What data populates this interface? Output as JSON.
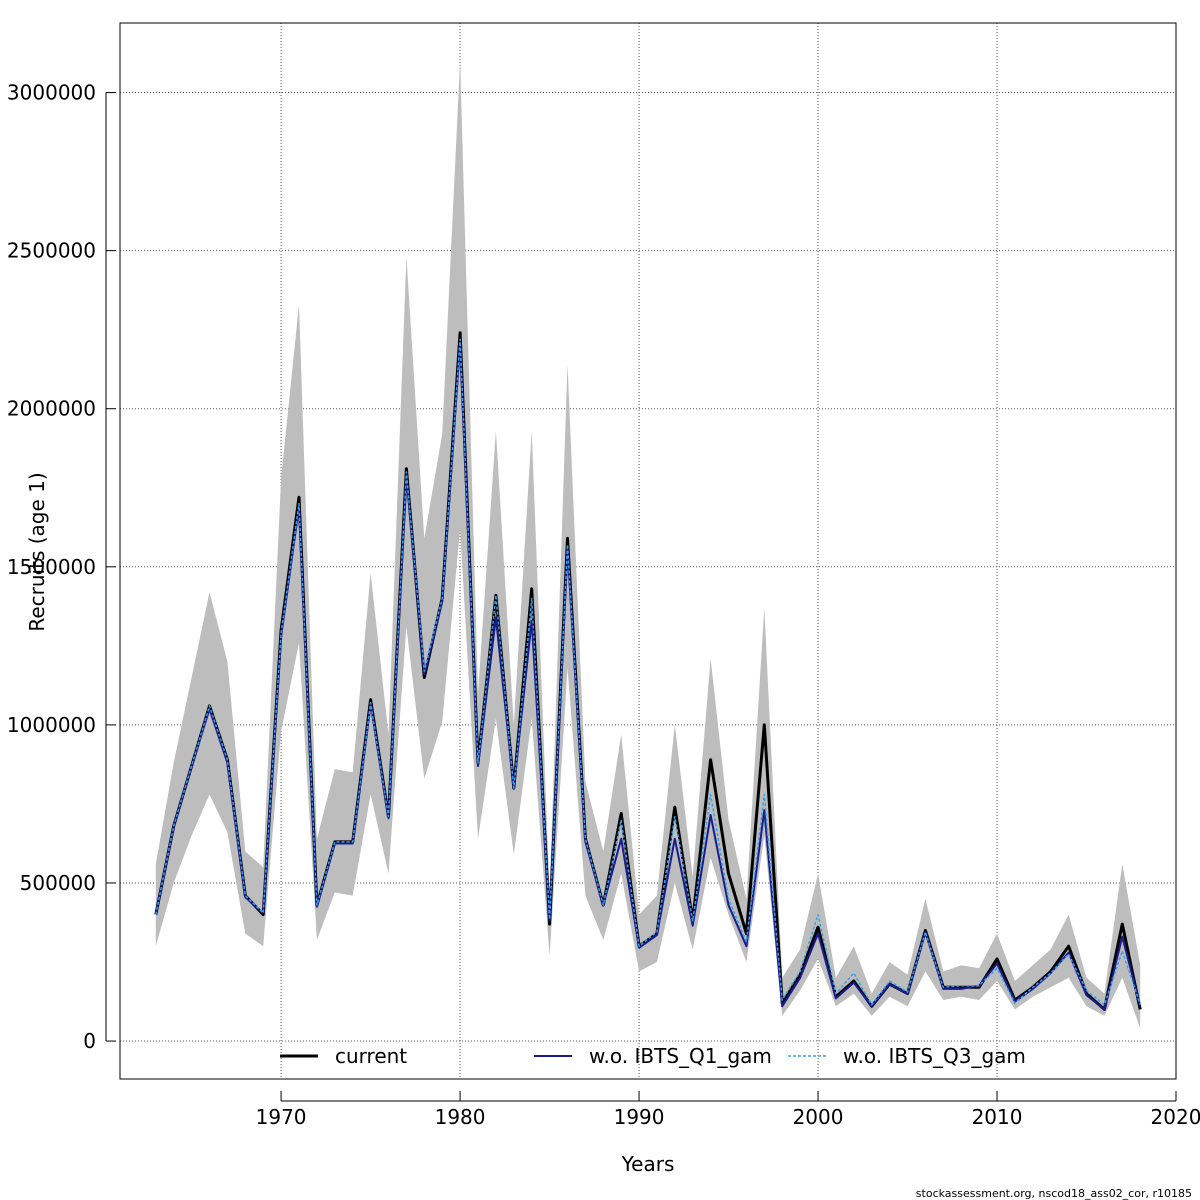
{
  "chart_data": {
    "type": "line",
    "xlabel": "Years",
    "ylabel": "Recruits (age 1)",
    "xlim": [
      1961,
      2020
    ],
    "ylim": [
      -120000,
      3220000
    ],
    "grid": true,
    "legend_position": "bottom",
    "x_ticks": [
      1970,
      1980,
      1990,
      2000,
      2010,
      2020
    ],
    "x_tick_labels": [
      "1970",
      "1980",
      "1990",
      "2000",
      "2010",
      "2020"
    ],
    "y_ticks": [
      0,
      500000,
      1000000,
      1500000,
      2000000,
      2500000,
      3000000
    ],
    "y_tick_labels": [
      "0",
      "500000",
      "1000000",
      "1500000",
      "2000000",
      "2500000",
      "3000000"
    ],
    "years": [
      1963,
      1964,
      1965,
      1966,
      1967,
      1968,
      1969,
      1970,
      1971,
      1972,
      1973,
      1974,
      1975,
      1976,
      1977,
      1978,
      1979,
      1980,
      1981,
      1982,
      1983,
      1984,
      1985,
      1986,
      1987,
      1988,
      1989,
      1990,
      1991,
      1992,
      1993,
      1994,
      1995,
      1996,
      1997,
      1998,
      1999,
      2000,
      2001,
      2002,
      2003,
      2004,
      2005,
      2006,
      2007,
      2008,
      2009,
      2010,
      2011,
      2012,
      2013,
      2014,
      2015,
      2016,
      2017,
      2018
    ],
    "ci_upper": [
      560000,
      880000,
      1150000,
      1420000,
      1200000,
      600000,
      550000,
      1780000,
      2330000,
      640000,
      860000,
      850000,
      1480000,
      970000,
      2480000,
      1590000,
      1920000,
      3100000,
      1100000,
      1930000,
      1000000,
      1930000,
      470000,
      2140000,
      820000,
      600000,
      970000,
      400000,
      460000,
      1000000,
      520000,
      1210000,
      700000,
      450000,
      1370000,
      200000,
      290000,
      530000,
      200000,
      300000,
      150000,
      250000,
      210000,
      450000,
      220000,
      240000,
      230000,
      340000,
      190000,
      240000,
      290000,
      400000,
      200000,
      150000,
      560000,
      240000
    ],
    "ci_lower": [
      300000,
      500000,
      650000,
      780000,
      660000,
      340000,
      300000,
      980000,
      1260000,
      320000,
      470000,
      460000,
      780000,
      530000,
      1310000,
      830000,
      1010000,
      1620000,
      640000,
      1020000,
      590000,
      1020000,
      270000,
      1180000,
      460000,
      320000,
      530000,
      220000,
      250000,
      500000,
      290000,
      580000,
      400000,
      250000,
      650000,
      80000,
      160000,
      260000,
      110000,
      150000,
      80000,
      140000,
      110000,
      220000,
      130000,
      140000,
      130000,
      190000,
      100000,
      140000,
      170000,
      200000,
      110000,
      80000,
      200000,
      40000
    ],
    "series": [
      {
        "name": "current",
        "color": "#000000",
        "values": [
          400000,
          680000,
          870000,
          1060000,
          890000,
          460000,
          400000,
          1300000,
          1720000,
          430000,
          630000,
          630000,
          1080000,
          710000,
          1810000,
          1150000,
          1400000,
          2240000,
          880000,
          1410000,
          800000,
          1430000,
          370000,
          1590000,
          640000,
          430000,
          720000,
          300000,
          340000,
          740000,
          380000,
          890000,
          530000,
          340000,
          1000000,
          120000,
          210000,
          360000,
          140000,
          190000,
          110000,
          180000,
          150000,
          350000,
          170000,
          170000,
          170000,
          260000,
          130000,
          170000,
          220000,
          300000,
          150000,
          100000,
          370000,
          100000
        ]
      },
      {
        "name": "w.o. IBTS_Q1_gam",
        "color": "#1b1b8f",
        "values": [
          400000,
          680000,
          870000,
          1050000,
          880000,
          455000,
          405000,
          1280000,
          1690000,
          425000,
          625000,
          625000,
          1070000,
          705000,
          1790000,
          1160000,
          1390000,
          2210000,
          870000,
          1340000,
          800000,
          1330000,
          380000,
          1560000,
          630000,
          430000,
          640000,
          295000,
          335000,
          640000,
          365000,
          715000,
          430000,
          300000,
          730000,
          110000,
          200000,
          340000,
          135000,
          185000,
          110000,
          180000,
          150000,
          345000,
          165000,
          165000,
          175000,
          245000,
          125000,
          165000,
          215000,
          280000,
          145000,
          100000,
          330000,
          110000
        ]
      },
      {
        "name": "w.o. IBTS_Q3_gam",
        "color": "#3aa0e6",
        "values": [
          400000,
          680000,
          870000,
          1060000,
          890000,
          460000,
          405000,
          1290000,
          1700000,
          430000,
          630000,
          630000,
          1070000,
          710000,
          1800000,
          1170000,
          1400000,
          2220000,
          880000,
          1410000,
          800000,
          1400000,
          385000,
          1570000,
          640000,
          430000,
          700000,
          300000,
          345000,
          710000,
          380000,
          780000,
          450000,
          315000,
          780000,
          130000,
          220000,
          400000,
          150000,
          215000,
          115000,
          190000,
          155000,
          345000,
          170000,
          175000,
          175000,
          230000,
          120000,
          170000,
          215000,
          275000,
          160000,
          115000,
          285000,
          115000
        ]
      }
    ]
  },
  "footer": "stockassessment.org, nscod18_ass02_cor, r10185"
}
